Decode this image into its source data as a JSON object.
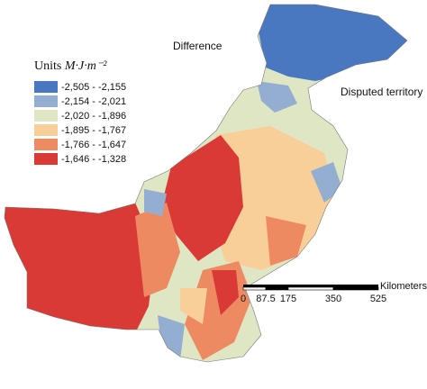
{
  "title": "Difference",
  "annotation": "Disputed territory",
  "legend": {
    "title": "Units",
    "unit": "M·J·m⁻²",
    "items": [
      {
        "label": "-2,505 - -2,155",
        "color": "#4a78c0"
      },
      {
        "label": "-2,154 - -2,021",
        "color": "#93aed0"
      },
      {
        "label": "-2,020 - -1,896",
        "color": "#dfe6c4"
      },
      {
        "label": "-1,895 - -1,767",
        "color": "#f8cf98"
      },
      {
        "label": "-1,766 - -1,647",
        "color": "#ee8a62"
      },
      {
        "label": "-1,646 - -1,328",
        "color": "#d93a35"
      }
    ]
  },
  "scale_bar": {
    "ticks": [
      0,
      87.5,
      175,
      350,
      525
    ],
    "unit": "Kilometers"
  }
}
